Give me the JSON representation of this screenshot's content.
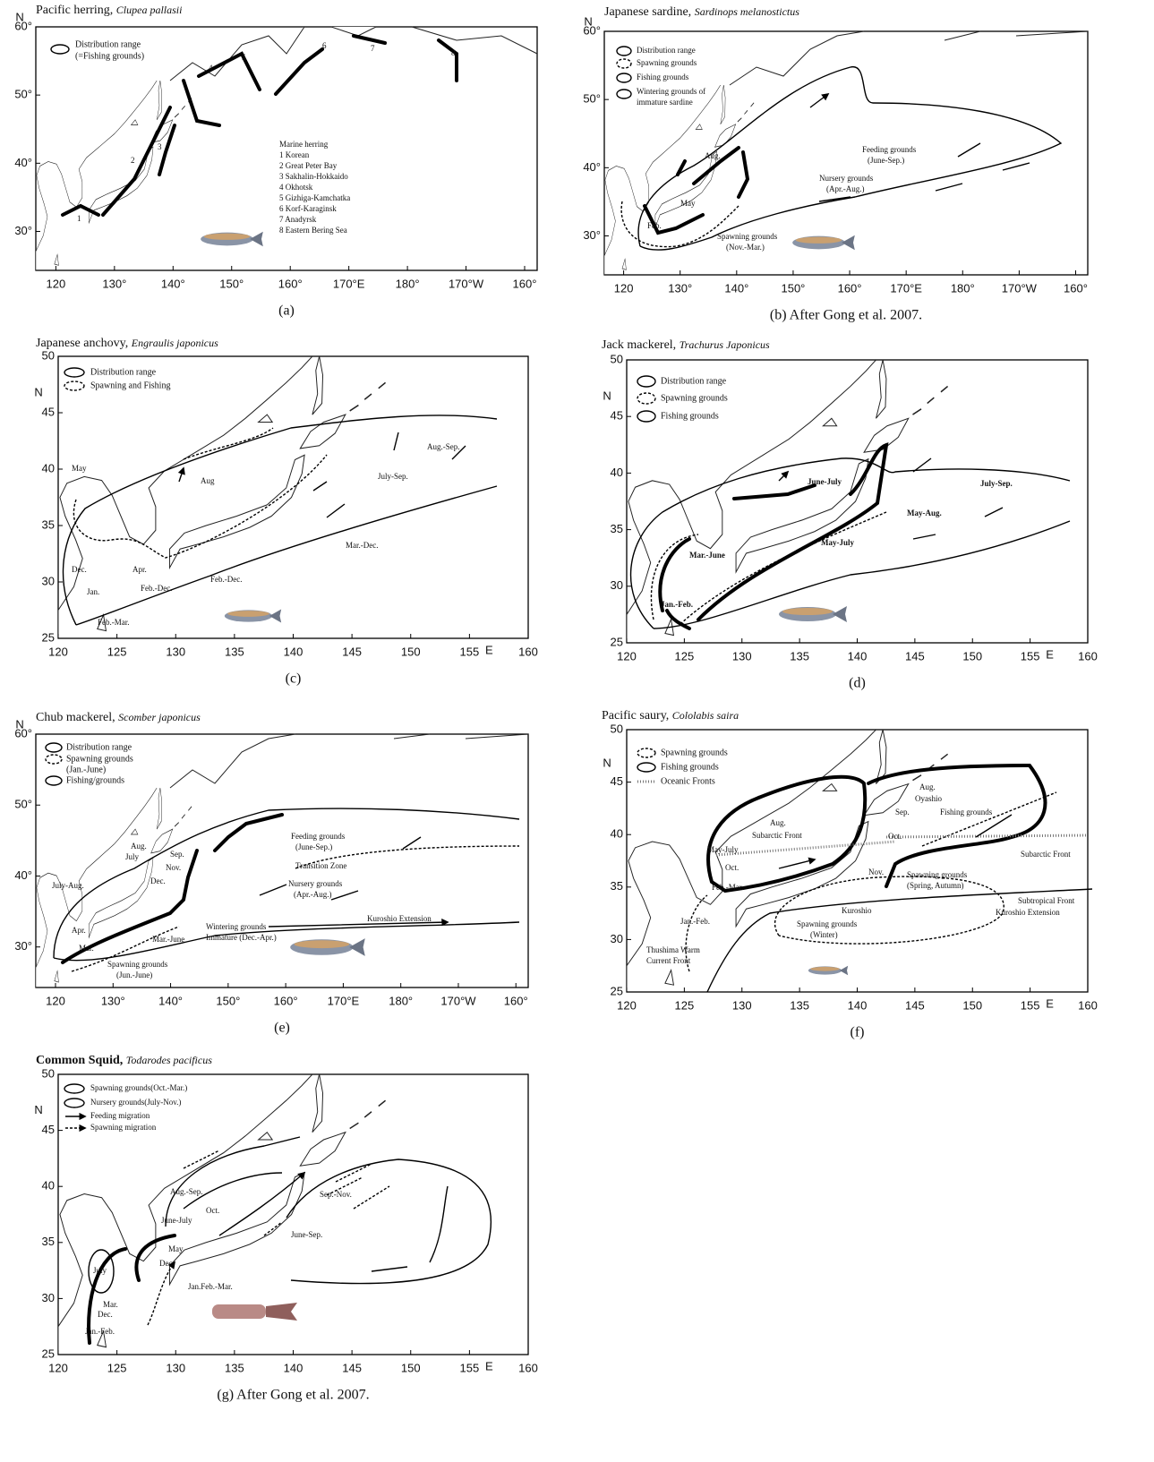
{
  "panels": [
    {
      "title": "Pacific herring,",
      "species": "Clupea pallasii",
      "caption": "(a)",
      "lat_unit": "N",
      "xticks": [
        "120",
        "130°",
        "140°",
        "150°",
        "160°",
        "170°E",
        "180°",
        "170°W",
        "160°"
      ],
      "yticks": [
        "60°",
        "50°",
        "40°",
        "30°"
      ],
      "legend": [
        "Distribution range",
        "(=Fishing grounds)"
      ],
      "labels": [
        "Marine herring",
        "1 Korean",
        "2 Great Peter Bay",
        "3 Sakhalin-Hokkaido",
        "4 Okhotsk",
        "5 Gizhiga-Kamchatka",
        "6 Korf-Karaginsk",
        "7 Anadyrsk",
        "8 Eastern Bering Sea",
        "1",
        "2",
        "3",
        "4",
        "5",
        "6",
        "7",
        "8"
      ]
    },
    {
      "title": "Japanese sardine,",
      "species": "Sardinops melanostictus",
      "caption": "(b) After Gong et al. 2007.",
      "lat_unit": "N",
      "xticks": [
        "120",
        "130°",
        "140°",
        "150°",
        "160°",
        "170°E",
        "180°",
        "170°W",
        "160°"
      ],
      "yticks": [
        "60°",
        "50°",
        "40°",
        "30°"
      ],
      "legend": [
        "Distribution range",
        "Spawning grounds",
        "Fishing grounds",
        "Wintering grounds of",
        "immature sardine"
      ],
      "labels": [
        "Aug.",
        "May",
        "Feb.",
        "Feeding grounds",
        "(June-Sep.)",
        "Nursery grounds",
        "(Apr.-Aug.)",
        "Spawning grounds",
        "(Nov.-Mar.)"
      ]
    },
    {
      "title": "Japanese anchovy,",
      "species": "Engraulis japonicus",
      "caption": "(c)",
      "lat_unit": "N",
      "lon_unit": "E",
      "xticks": [
        120,
        125,
        130,
        135,
        140,
        145,
        150,
        155,
        160
      ],
      "yticks": [
        50,
        45,
        40,
        35,
        30,
        25
      ],
      "legend": [
        "Distribution range",
        "Spawning and Fishing"
      ],
      "labels": [
        "Aug.-Sep.",
        "July-Sep.",
        "Aug",
        "May",
        "Dec.",
        "Jan.",
        "Apr.",
        "Feb.-Dec.",
        "Mar.-Dec.",
        "Feb.-Dec.",
        "Feb.-Mar."
      ]
    },
    {
      "title": "Jack mackerel,",
      "species": "Trachurus Japonicus",
      "caption": "(d)",
      "lat_unit": "N",
      "lon_unit": "E",
      "xticks": [
        120,
        125,
        130,
        135,
        140,
        145,
        150,
        155,
        160
      ],
      "yticks": [
        50,
        45,
        40,
        35,
        30,
        25
      ],
      "legend": [
        "Distribution range",
        "Spawning grounds",
        "Fishing grounds"
      ],
      "labels": [
        "June-July",
        "July-Sep.",
        "May-Aug.",
        "May-July",
        "Mar.-June",
        "Jan.-Feb."
      ]
    },
    {
      "title": "Chub mackerel,",
      "species": "Scomber japonicus",
      "caption": "(e)",
      "lat_unit": "N",
      "xticks": [
        "120",
        "130°",
        "140°",
        "150°",
        "160°",
        "170°E",
        "180°",
        "170°W",
        "160°"
      ],
      "yticks": [
        "60°",
        "50°",
        "40°",
        "30°"
      ],
      "legend": [
        "Distribution range",
        "Spawning grounds",
        "(Jan.-June)",
        "Fishing/grounds"
      ],
      "labels": [
        "Feeding grounds",
        "(June-Sep.)",
        "Transition Zone",
        "Nursery grounds",
        "(Apr.-Aug.)",
        "Kuroshio Extension",
        "Wintering grounds",
        "Immature (Dec.-Apr.)",
        "Aug.",
        "July",
        "Sep.",
        "Nov.",
        "Dec.",
        "July-Aug.",
        "Apr.",
        "Mar.",
        "Mar.-June",
        "Spawning grounds",
        "(Jun.-June)"
      ]
    },
    {
      "title": "Pacific saury,",
      "species": "Cololabis saira",
      "caption": "(f)",
      "lat_unit": "N",
      "lon_unit": "E",
      "xticks": [
        120,
        125,
        130,
        135,
        140,
        145,
        150,
        155,
        160
      ],
      "yticks": [
        50,
        45,
        40,
        35,
        30,
        25
      ],
      "legend": [
        "Spawning grounds",
        "Fishing grounds",
        "Oceanic Fronts"
      ],
      "labels": [
        "Aug.",
        "Subarctic Front",
        "May-July",
        "Oct.",
        "Feb.-Mar.",
        "Jan.-Feb.",
        "Thushima Warm",
        "Current Front",
        "Aug.",
        "Oyashio",
        "Sep.",
        "Fishing grounds",
        "Oct.",
        "Subarctic Front",
        "Nov.",
        "Spawning grounds",
        "(Spring, Autumn)",
        "Subtropical Front",
        "Kuroshio Extension",
        "Kuroshio",
        "Spawning grounds",
        "(Winter)"
      ]
    },
    {
      "title": "Common Squid,",
      "species": "Todarodes pacificus",
      "caption": "(g) After Gong et al. 2007.",
      "lat_unit": "N",
      "lon_unit": "E",
      "xticks": [
        120,
        125,
        130,
        135,
        140,
        145,
        150,
        155,
        160
      ],
      "yticks": [
        50,
        45,
        40,
        35,
        30,
        25
      ],
      "legend": [
        "Spawning grounds(Oct.-Mar.)",
        "Nursery grounds(July-Nov.)",
        "Feeding migration",
        "Spawning migration"
      ],
      "labels": [
        "Aug.-Sep.",
        "Oct.",
        "June-July",
        "May",
        "Dec.",
        "Sep.-Nov.",
        "June-Sep.",
        "July",
        "Mar.",
        "Dec.",
        "Jan.-Feb.",
        "Jan.Feb.-Mar."
      ]
    }
  ]
}
